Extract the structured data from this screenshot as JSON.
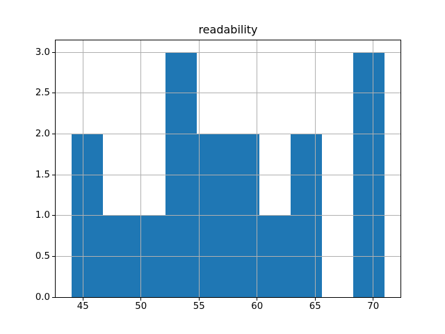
{
  "figure": {
    "background": "#ffffff"
  },
  "chart_data": {
    "type": "bar",
    "subtype": "histogram",
    "title": "readability",
    "xlabel": "",
    "ylabel": "",
    "bin_edges": [
      44.0,
      46.7,
      49.4,
      52.1,
      54.8,
      57.5,
      60.2,
      62.9,
      65.6,
      68.3,
      71.0
    ],
    "counts": [
      2,
      1,
      1,
      3,
      2,
      2,
      1,
      2,
      0,
      3
    ],
    "xlim": [
      42.65,
      72.35
    ],
    "ylim": [
      0,
      3.15
    ],
    "xticks": [
      45,
      50,
      55,
      60,
      65,
      70
    ],
    "xtick_labels": [
      "45",
      "50",
      "55",
      "60",
      "65",
      "70"
    ],
    "yticks": [
      0.0,
      0.5,
      1.0,
      1.5,
      2.0,
      2.5,
      3.0
    ],
    "ytick_labels": [
      "0.0",
      "0.5",
      "1.0",
      "1.5",
      "2.0",
      "2.5",
      "3.0"
    ],
    "grid": true,
    "grid_over_bars": true,
    "legend": false,
    "bar_color": "#1f77b4",
    "grid_color": "#b0b0b0",
    "spine_color": "#000000",
    "text_color": "#000000"
  }
}
